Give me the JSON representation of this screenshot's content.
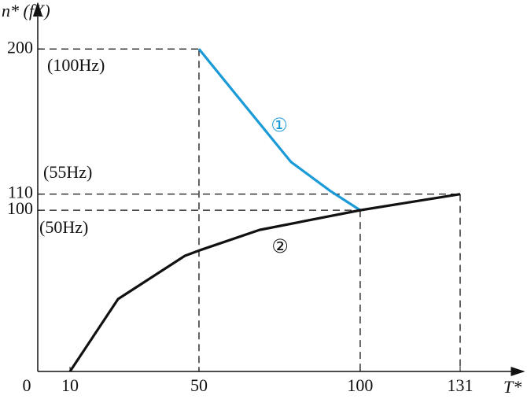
{
  "chart_data": {
    "type": "line",
    "xlabel": "T*",
    "ylabel": "n* (fX)",
    "xlim": [
      0,
      151
    ],
    "ylim": [
      0,
      226
    ],
    "xticks": [
      0,
      10,
      50,
      100,
      131
    ],
    "yticks": [
      100,
      110,
      200
    ],
    "series": [
      {
        "name": "①",
        "color": "#1a9ad6",
        "x": [
          50,
          61.5,
          78.5,
          90.7,
          100
        ],
        "values": [
          200,
          171.7,
          130,
          112,
          100
        ]
      },
      {
        "name": "②",
        "color": "#111111",
        "x": [
          10,
          24.9,
          45.6,
          50,
          68.8,
          100,
          131
        ],
        "values": [
          0,
          44.9,
          71.7,
          75,
          87.8,
          100,
          110
        ]
      }
    ],
    "annotations": [
      "(100Hz)",
      "(55Hz)",
      "(50Hz)"
    ]
  }
}
